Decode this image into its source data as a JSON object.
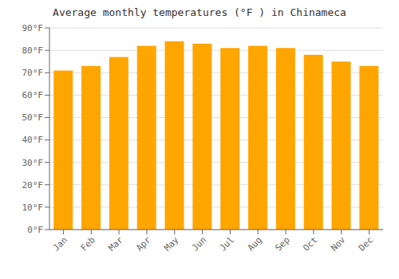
{
  "chart_data": {
    "type": "bar",
    "title": "Average monthly temperatures (°F ) in Chinameca",
    "categories": [
      "Jan",
      "Feb",
      "Mar",
      "Apr",
      "May",
      "Jun",
      "Jul",
      "Aug",
      "Sep",
      "Oct",
      "Nov",
      "Dec"
    ],
    "values": [
      71,
      73,
      77,
      82,
      84,
      83,
      81,
      82,
      81,
      78,
      75,
      73
    ],
    "color": "#FFA500",
    "ylim": [
      0,
      90
    ],
    "yticks": [
      {
        "value": 0,
        "label": "0°F"
      },
      {
        "value": 10,
        "label": "10°F"
      },
      {
        "value": 20,
        "label": "20°F"
      },
      {
        "value": 30,
        "label": "30°F"
      },
      {
        "value": 40,
        "label": "40°F"
      },
      {
        "value": 50,
        "label": "50°F"
      },
      {
        "value": 60,
        "label": "60°F"
      },
      {
        "value": 70,
        "label": "70°F"
      },
      {
        "value": 80,
        "label": "80°F"
      },
      {
        "value": 90,
        "label": "90°F"
      }
    ],
    "grid": true
  }
}
